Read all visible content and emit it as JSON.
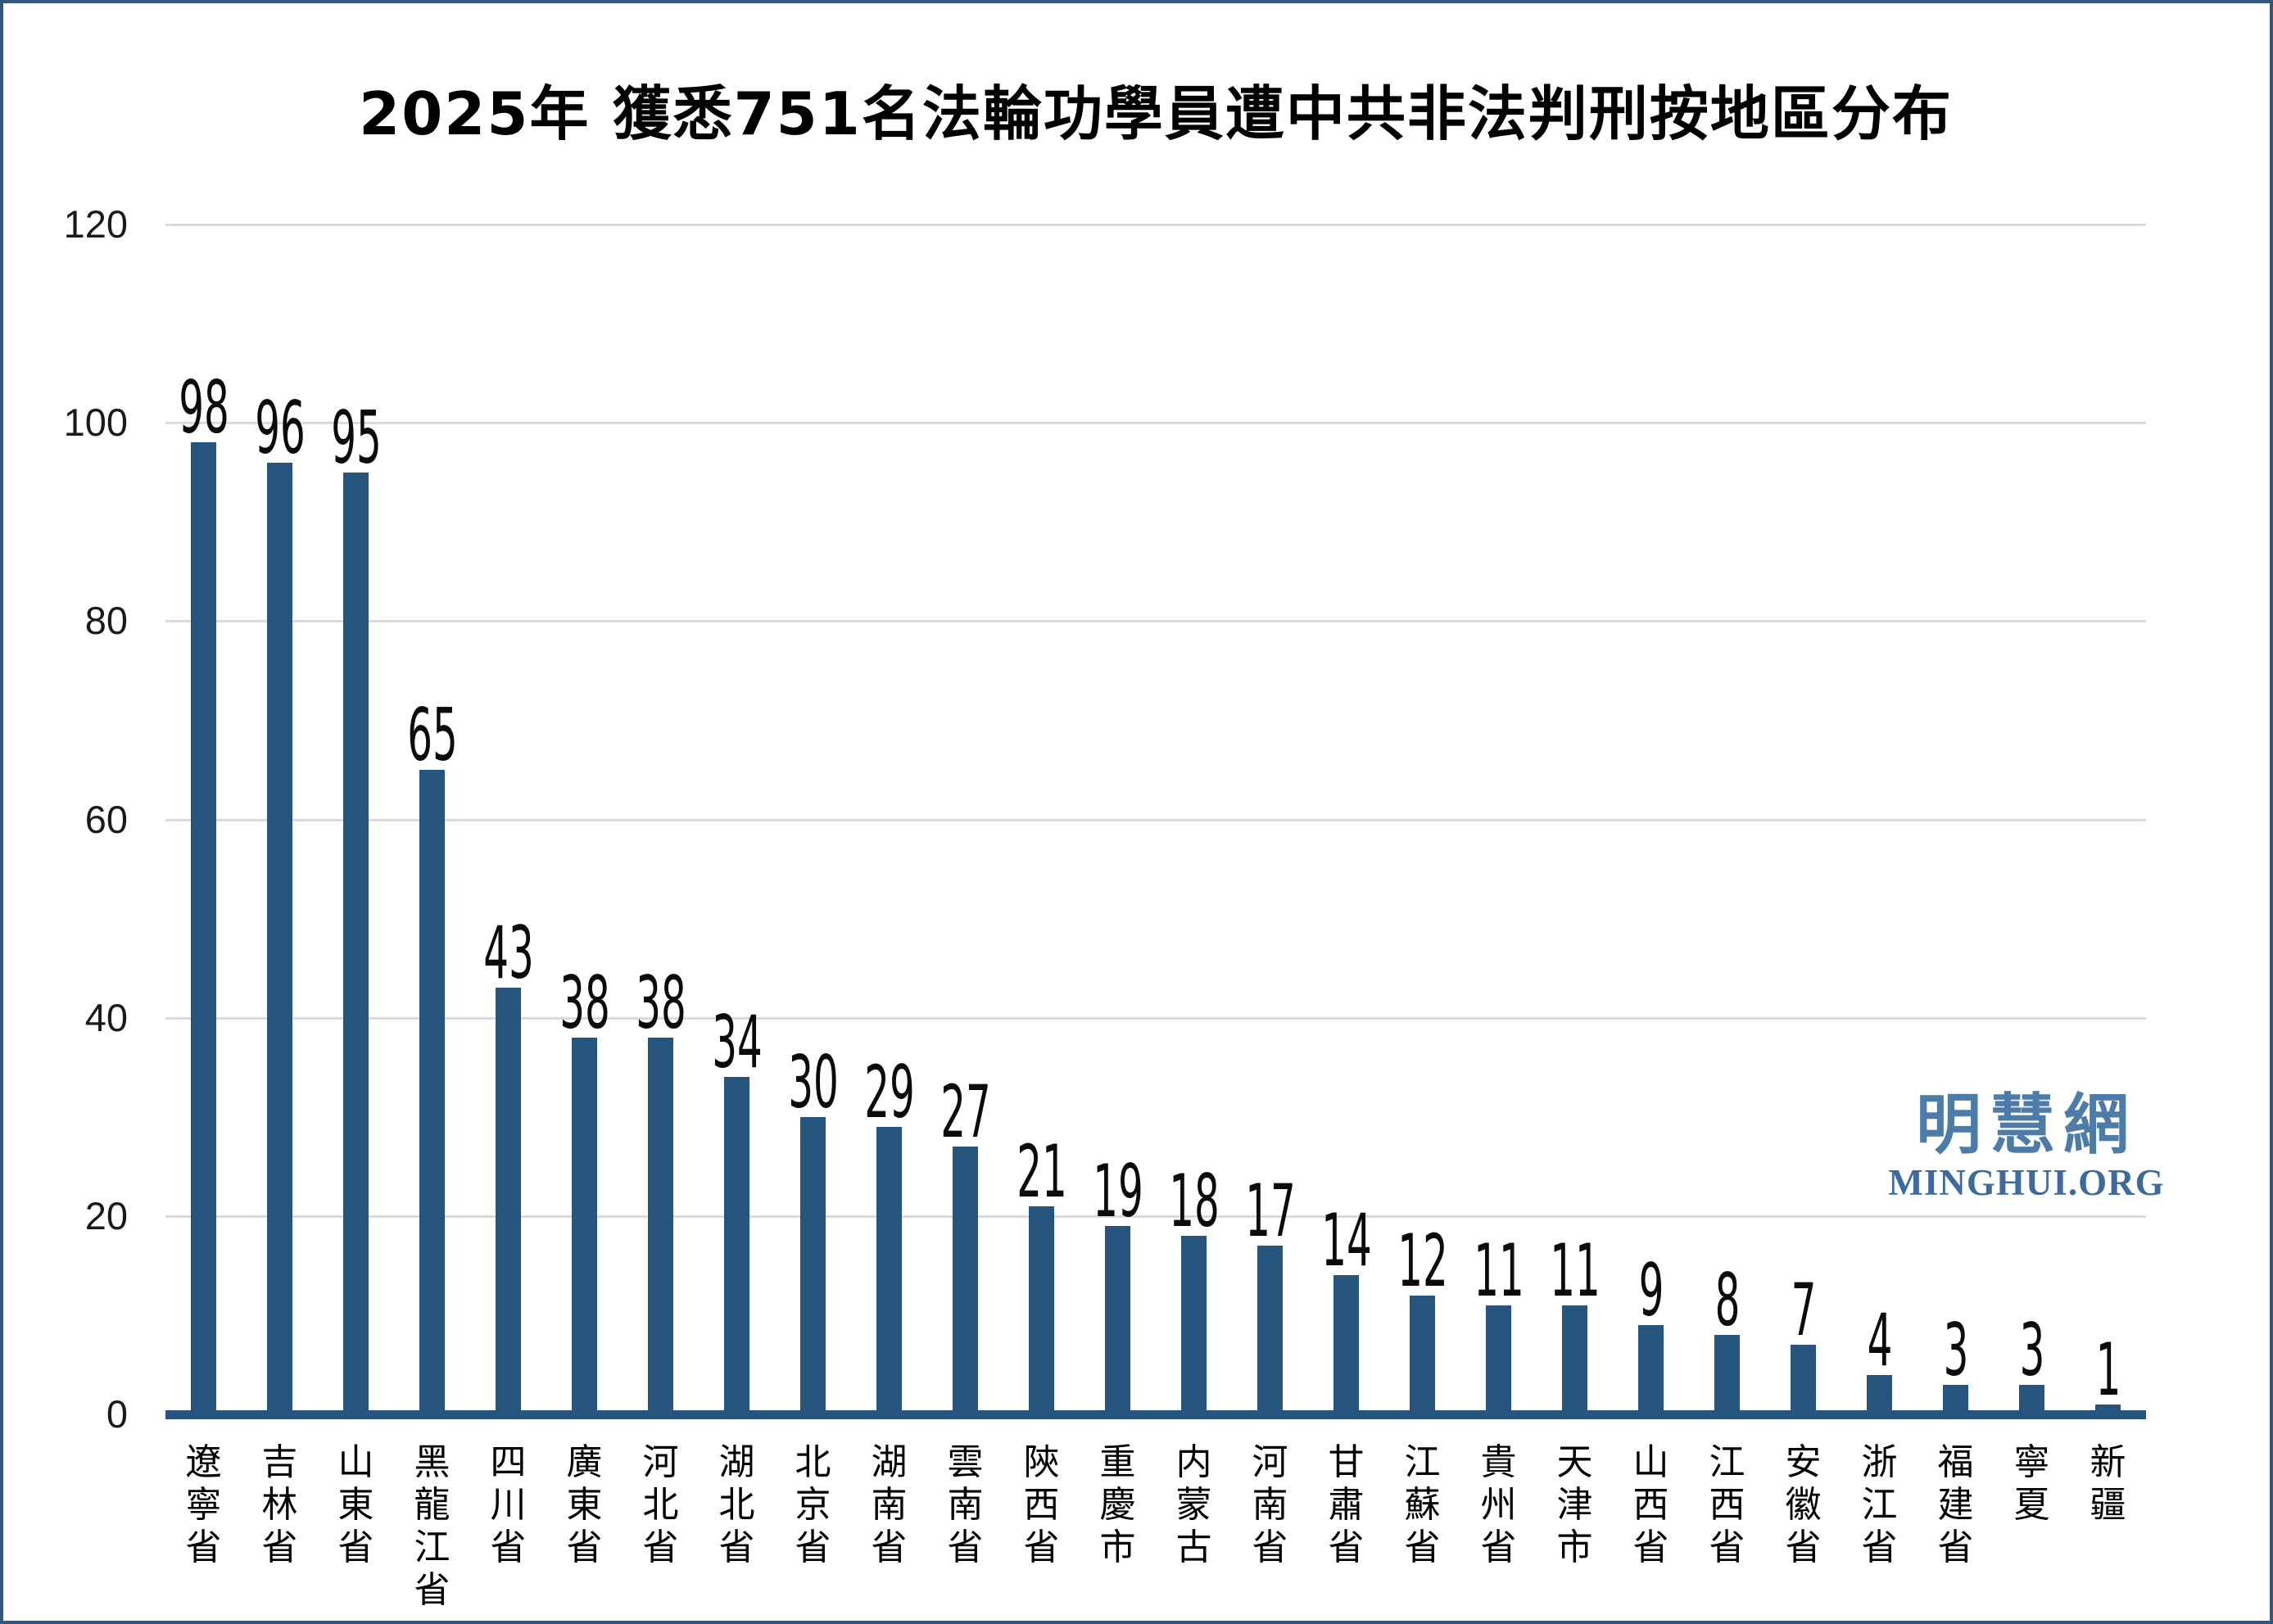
{
  "chart_data": {
    "type": "bar",
    "title": "2025年 獲悉751名法輪功學員遭中共非法判刑按地區分布",
    "categories": [
      "遼寧省",
      "吉林省",
      "山東省",
      "黑龍江省",
      "四川省",
      "廣東省",
      "河北省",
      "湖北省",
      "北京省",
      "湖南省",
      "雲南省",
      "陝西省",
      "重慶市",
      "内蒙古",
      "河南省",
      "甘肅省",
      "江蘇省",
      "貴州省",
      "天津市",
      "山西省",
      "江西省",
      "安徽省",
      "浙江省",
      "福建省",
      "寧夏",
      "新疆"
    ],
    "values": [
      98,
      96,
      95,
      65,
      43,
      38,
      38,
      34,
      30,
      29,
      27,
      21,
      19,
      18,
      17,
      14,
      12,
      11,
      11,
      9,
      8,
      7,
      4,
      3,
      3,
      1
    ],
    "total": 751,
    "xlabel": "",
    "ylabel": "",
    "ylim": [
      0,
      120
    ],
    "yticks": [
      0,
      20,
      40,
      60,
      80,
      100,
      120
    ],
    "grid": true,
    "legend": "none",
    "bar_color": "#26567D",
    "axis_line_color": "#26567D",
    "gridline_color": "#DBDBDB",
    "tick_label_color": "#1A1A1A",
    "value_label_color": "#0B0B0B"
  },
  "logo": {
    "cjk": "明慧網",
    "latin": "MINGHUI.ORG",
    "cjk_color": "#4E7CA8",
    "latin_color": "#3E6B9C"
  },
  "frame": {
    "border_color": "#2E5880",
    "background": "#FFFFFF"
  }
}
